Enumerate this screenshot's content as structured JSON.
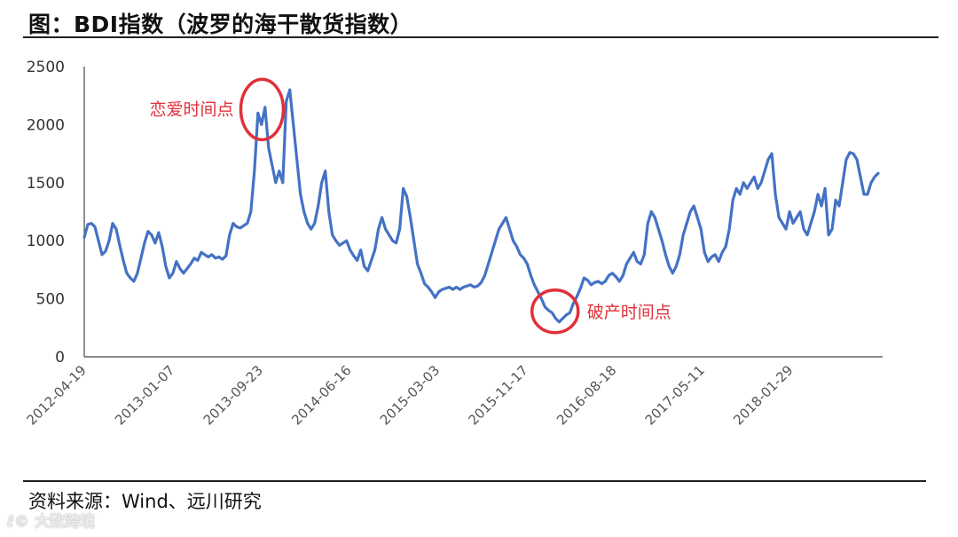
{
  "title": "图：BDI指数（波罗的海干散货指数）",
  "source": "资料来源：Wind、远川研究",
  "watermark": "大数跨境",
  "colors": {
    "line": "#4472c4",
    "annotation": "#e0303a",
    "axis": "#444444"
  },
  "chart_data": {
    "type": "line",
    "title": "图：BDI指数（波罗的海干散货指数）",
    "ylim": [
      0,
      2500
    ],
    "yticks": [
      0,
      500,
      1000,
      1500,
      2000,
      2500
    ],
    "xticks": [
      "2012-04-19",
      "2013-01-07",
      "2013-09-23",
      "2014-06-16",
      "2015-03-03",
      "2015-11-17",
      "2016-08-18",
      "2017-05-11",
      "2018-01-29"
    ],
    "grid": false,
    "legend": "none",
    "series": [
      {
        "values": [
          1030,
          1140,
          1150,
          1120,
          1000,
          880,
          910,
          1000,
          1150,
          1100,
          960,
          830,
          720,
          680,
          650,
          720,
          850,
          980,
          1080,
          1050,
          980,
          1070,
          950,
          780,
          680,
          720,
          820,
          760,
          720,
          760,
          800,
          850,
          830,
          900,
          880,
          860,
          880,
          850,
          860,
          840,
          870,
          1050,
          1150,
          1120,
          1110,
          1130,
          1150,
          1250,
          1600,
          2100,
          2000,
          2150,
          1800,
          1650,
          1500,
          1600,
          1500,
          2200,
          2300,
          2000,
          1700,
          1400,
          1250,
          1150,
          1100,
          1150,
          1300,
          1500,
          1600,
          1250,
          1050,
          1000,
          960,
          980,
          1000,
          920,
          870,
          830,
          920,
          780,
          740,
          830,
          920,
          1100,
          1200,
          1100,
          1050,
          1000,
          980,
          1100,
          1450,
          1380,
          1200,
          1000,
          800,
          720,
          630,
          600,
          560,
          510,
          560,
          580,
          590,
          600,
          580,
          600,
          580,
          600,
          610,
          620,
          600,
          610,
          640,
          700,
          800,
          900,
          1000,
          1100,
          1150,
          1200,
          1100,
          1000,
          950,
          880,
          850,
          800,
          700,
          620,
          560,
          500,
          430,
          400,
          380,
          330,
          300,
          330,
          360,
          380,
          460,
          520,
          590,
          680,
          660,
          620,
          640,
          650,
          630,
          650,
          700,
          720,
          690,
          650,
          700,
          800,
          850,
          900,
          820,
          800,
          880,
          1150,
          1250,
          1200,
          1100,
          1000,
          880,
          780,
          720,
          780,
          880,
          1050,
          1150,
          1250,
          1300,
          1200,
          1100,
          900,
          820,
          860,
          880,
          820,
          900,
          950,
          1100,
          1350,
          1450,
          1400,
          1500,
          1450,
          1500,
          1550,
          1450,
          1500,
          1600,
          1700,
          1750,
          1400,
          1200,
          1150,
          1100,
          1250,
          1150,
          1200,
          1250,
          1100,
          1050,
          1150,
          1250,
          1400,
          1300,
          1450,
          1050,
          1100,
          1350,
          1300,
          1500,
          1700,
          1760,
          1750,
          1700,
          1550,
          1400,
          1400,
          1500,
          1550,
          1580
        ]
      }
    ],
    "annotations": [
      {
        "text": "恋爱时间点",
        "x_fraction": 0.224,
        "value": 2100
      },
      {
        "text": "破产时间点",
        "x_fraction": 0.593,
        "value": 300
      }
    ]
  }
}
